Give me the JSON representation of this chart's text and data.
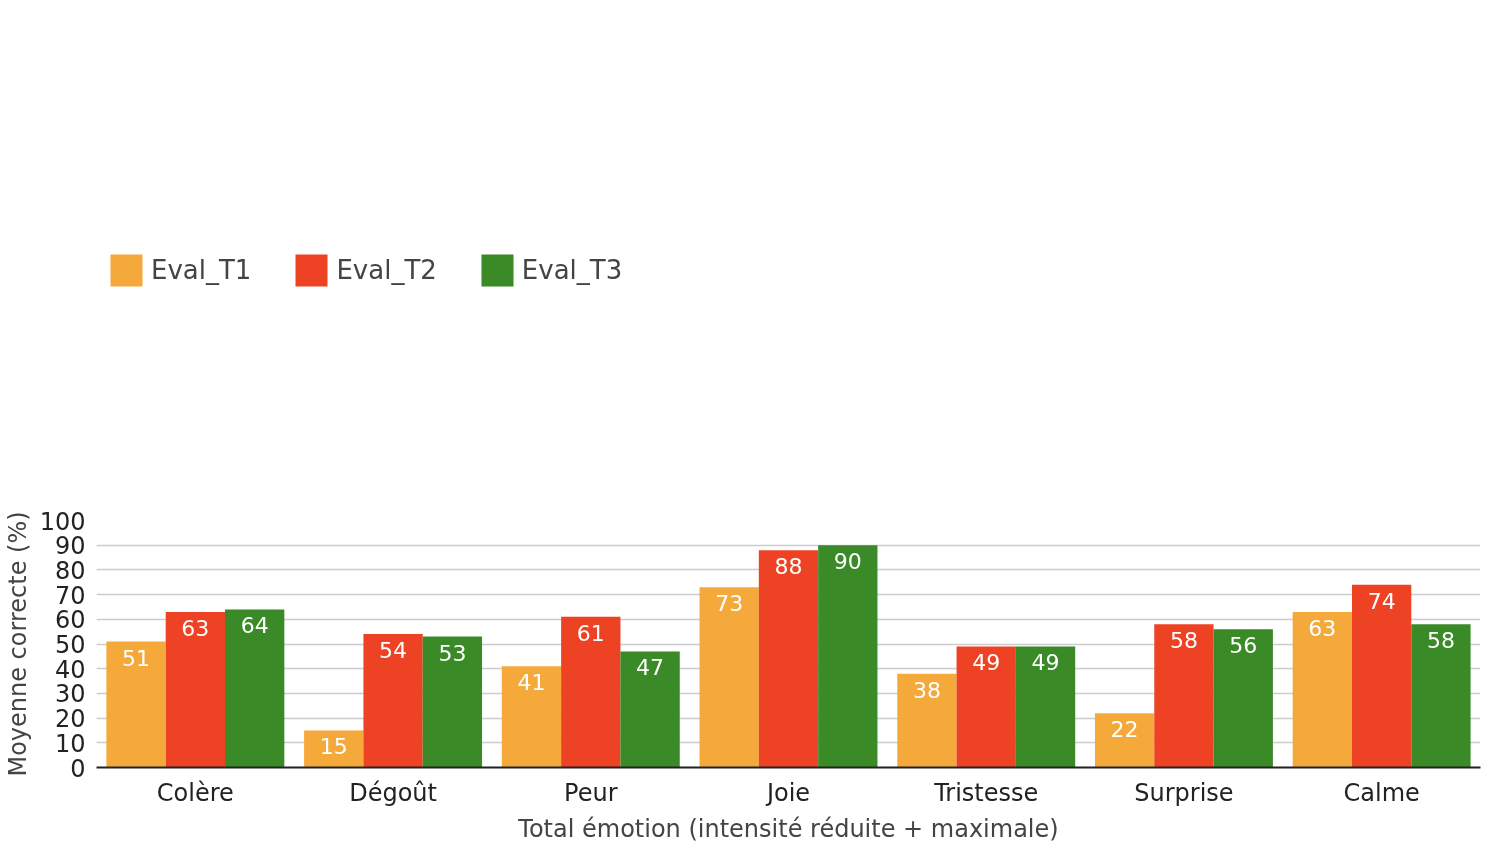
{
  "chart_data": {
    "type": "bar",
    "xlabel": "Total émotion (intensité réduite + maximale)",
    "ylabel": "Moyenne correcte (%)",
    "categories": [
      "Colère",
      "Dégoût",
      "Peur",
      "Joie",
      "Tristesse",
      "Surprise",
      "Calme"
    ],
    "series": [
      {
        "name": "Eval_T1",
        "color": "#f5a93a",
        "values": [
          51,
          15,
          41,
          73,
          38,
          22,
          63
        ]
      },
      {
        "name": "Eval_T2",
        "color": "#ee4224",
        "values": [
          63,
          54,
          61,
          88,
          49,
          58,
          74
        ]
      },
      {
        "name": "Eval_T3",
        "color": "#3a8a28",
        "values": [
          64,
          53,
          47,
          90,
          49,
          56,
          58
        ]
      }
    ],
    "ylim": [
      0,
      100
    ],
    "yticks": [
      0,
      10,
      20,
      30,
      40,
      50,
      60,
      70,
      80,
      90,
      100
    ],
    "grid": "y",
    "legend": "top",
    "data_labels": true
  }
}
